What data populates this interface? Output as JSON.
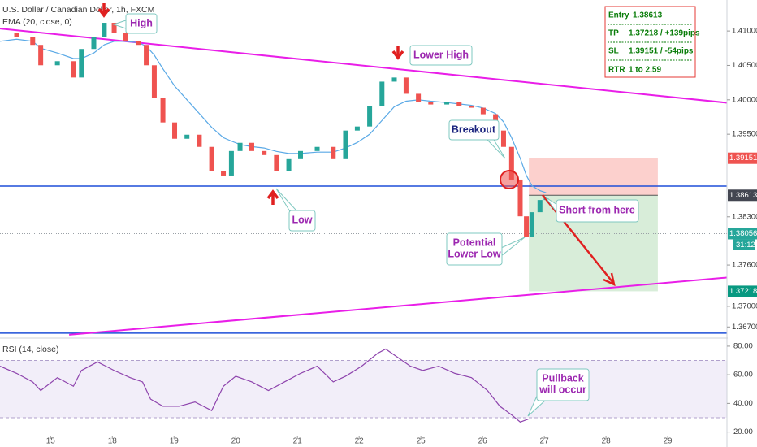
{
  "chart_data": {
    "type": "candlestick",
    "title": "U.S. Dollar / Canadian Dollar, 1h, FXCM",
    "indicator": "EMA (20, close, 0)",
    "x": [
      -0.82,
      -0.55,
      -0.29,
      -0.16,
      0.11,
      0.37,
      0.5,
      0.7,
      0.87,
      1.03,
      1.22,
      1.42,
      1.55,
      1.68,
      1.82,
      2.01,
      2.21,
      2.41,
      2.61,
      2.8,
      2.93,
      3.07,
      3.26,
      3.46,
      3.66,
      3.86,
      4.05,
      4.32,
      4.58,
      4.78,
      4.97,
      5.17,
      5.37,
      5.57,
      5.76,
      5.96,
      6.16,
      6.42,
      6.62,
      6.82,
      7.01,
      7.21,
      7.34,
      7.47,
      7.61,
      7.71,
      7.8,
      7.93,
      8.03
    ],
    "close": [
      1.40976,
      1.40917,
      1.40798,
      1.40502,
      1.40561,
      1.40324,
      1.40739,
      1.40917,
      1.41119,
      1.40976,
      1.40858,
      1.40798,
      1.40502,
      1.40027,
      1.39671,
      1.39434,
      1.39493,
      1.39316,
      1.3896,
      1.389,
      1.39256,
      1.39375,
      1.39256,
      1.39197,
      1.3896,
      1.39138,
      1.39256,
      1.39316,
      1.39138,
      1.39553,
      1.39612,
      1.39909,
      1.40264,
      1.40324,
      1.40087,
      1.39968,
      1.39932,
      1.39968,
      1.39909,
      1.39885,
      1.3979,
      1.39553,
      1.39316,
      1.38841,
      1.38307,
      1.38011,
      1.38367,
      1.38544,
      1.38568
    ],
    "ema": [
      1.4085,
      1.4088,
      1.4085,
      1.4075,
      1.4068,
      1.406,
      1.406,
      1.4068,
      1.408,
      1.4085,
      1.4085,
      1.4083,
      1.4078,
      1.4065,
      1.4045,
      1.402,
      1.4,
      1.398,
      1.396,
      1.3945,
      1.394,
      1.3935,
      1.3932,
      1.393,
      1.3925,
      1.3922,
      1.3922,
      1.3924,
      1.3924,
      1.393,
      1.3938,
      1.395,
      1.397,
      1.399,
      1.3998,
      1.4,
      1.3998,
      1.3996,
      1.3994,
      1.3992,
      1.3988,
      1.398,
      1.3968,
      1.3945,
      1.3915,
      1.389,
      1.3875,
      1.3868,
      1.3865
    ],
    "up_color": "#26a69a",
    "down_color": "#ef5350",
    "ema_color": "#5aa9e6",
    "xlim": [
      -0.82,
      10.96
    ],
    "xticks": [
      {
        "value": 0,
        "label": "15"
      },
      {
        "value": 1,
        "label": "18"
      },
      {
        "value": 2,
        "label": "19"
      },
      {
        "value": 3,
        "label": "20"
      },
      {
        "value": 4,
        "label": "21"
      },
      {
        "value": 5,
        "label": "22"
      },
      {
        "value": 6,
        "label": "25"
      },
      {
        "value": 7,
        "label": "26"
      },
      {
        "value": 8,
        "label": "27"
      },
      {
        "value": 9,
        "label": "28"
      },
      {
        "value": 10,
        "label": "29"
      }
    ],
    "ylim": [
      1.3655,
      1.4145
    ],
    "yticks": [
      {
        "value": 1.41,
        "label": "1.41000"
      },
      {
        "value": 1.405,
        "label": "1.40500"
      },
      {
        "value": 1.4,
        "label": "1.40000"
      },
      {
        "value": 1.395,
        "label": "1.39500"
      },
      {
        "value": 1.383,
        "label": "1.38300"
      },
      {
        "value": 1.376,
        "label": "1.37600"
      },
      {
        "value": 1.37,
        "label": "1.37000"
      },
      {
        "value": 1.367,
        "label": "1.36700"
      }
    ],
    "trendlines": [
      {
        "x": [
          -0.82,
          10.96
        ],
        "y": [
          1.41036,
          1.39957
        ],
        "color": "#e91ee8"
      },
      {
        "x": [
          0.3,
          10.96
        ],
        "y": [
          1.36587,
          1.37418
        ],
        "color": "#e91ee8"
      }
    ],
    "levels": [
      {
        "value": 1.38746,
        "color": "#1e4fd8",
        "dashed": false
      },
      {
        "value": 1.36611,
        "color": "#1e4fd8",
        "dashed": false
      },
      {
        "value": 1.38056,
        "color": "#9aa0a6",
        "dashed": true
      }
    ],
    "position": {
      "x": [
        7.75,
        9.84
      ],
      "entry": 1.38613,
      "stop": 1.39151,
      "target": 1.37218
    },
    "price_labels": [
      {
        "value": 1.39151,
        "label": "1.39151",
        "color": "#ef5350"
      },
      {
        "value": 1.38613,
        "label": "1.38613",
        "color": "#434651"
      },
      {
        "value": 1.38056,
        "label": "1.38056",
        "color": "#26a69a"
      },
      {
        "value": 1.37218,
        "label": "1.37218",
        "color": "#089981"
      }
    ],
    "countdown": "31:12",
    "rsi": {
      "label": "RSI (14, close)",
      "x": [
        -0.82,
        -0.55,
        -0.29,
        -0.16,
        0.11,
        0.37,
        0.5,
        0.76,
        1.03,
        1.29,
        1.49,
        1.62,
        1.82,
        2.08,
        2.34,
        2.61,
        2.8,
        3.0,
        3.26,
        3.53,
        3.79,
        4.05,
        4.32,
        4.58,
        4.78,
        5.04,
        5.3,
        5.43,
        5.63,
        5.83,
        6.03,
        6.29,
        6.55,
        6.82,
        7.08,
        7.28,
        7.47,
        7.61,
        7.74
      ],
      "values": [
        66,
        61,
        55,
        49,
        58,
        52,
        63,
        69,
        63,
        58,
        55,
        43,
        38,
        38,
        41,
        35,
        52,
        59,
        55,
        49,
        55,
        61,
        66,
        55,
        59,
        66,
        75,
        78,
        72,
        66,
        63,
        66,
        61,
        58,
        49,
        38,
        32,
        27,
        29
      ],
      "color": "#8e44ad",
      "band": [
        30,
        70
      ],
      "ylim": [
        17.5,
        84.5
      ],
      "yticks": [
        {
          "value": 80,
          "label": "80.00"
        },
        {
          "value": 60,
          "label": "60.00"
        },
        {
          "value": 40,
          "label": "40.00"
        },
        {
          "value": 20,
          "label": "20.00"
        }
      ]
    },
    "trade": {
      "entry_label": "Entry",
      "entry": "1.38613",
      "tp_label": "TP",
      "tp": "1.37218 / +139pips",
      "sl_label": "SL",
      "sl": "1.39151 / -54pips",
      "rtr_label": "RTR",
      "rtr": "1 to 2.59"
    },
    "annotations": {
      "high": "High",
      "lower_high": "Lower High",
      "low": "Low",
      "breakout": "Breakout",
      "short": "Short from here",
      "lower_low": [
        "Potential",
        "Lower Low"
      ],
      "pullback": [
        "Pullback",
        "will occur"
      ]
    }
  }
}
